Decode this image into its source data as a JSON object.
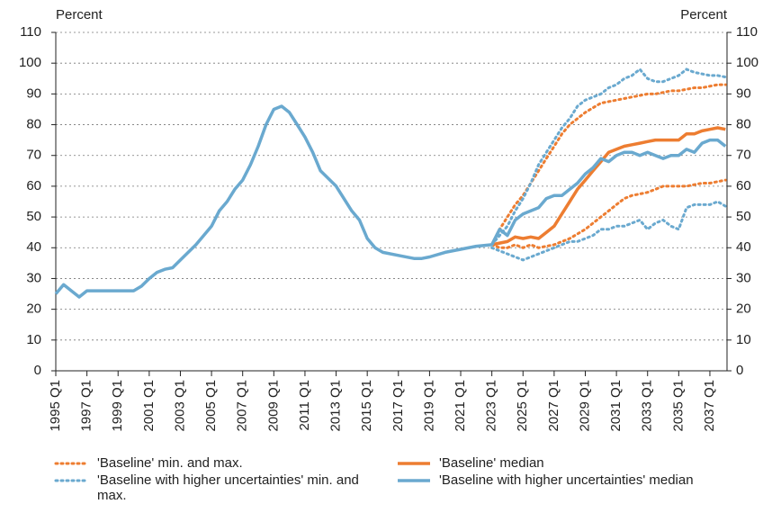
{
  "chart_data": {
    "type": "line",
    "y_axis_label": "Percent",
    "y2_axis_label": "Percent",
    "xlim": [
      1995,
      2038.1
    ],
    "xticks": [
      {
        "value": 1995,
        "label": "1995 Q1"
      },
      {
        "value": 1997,
        "label": "1997 Q1"
      },
      {
        "value": 1999,
        "label": "1999 Q1"
      },
      {
        "value": 2001,
        "label": "2001 Q1"
      },
      {
        "value": 2003,
        "label": "2003 Q1"
      },
      {
        "value": 2005,
        "label": "2005 Q1"
      },
      {
        "value": 2007,
        "label": "2007 Q1"
      },
      {
        "value": 2009,
        "label": "2009 Q1"
      },
      {
        "value": 2011,
        "label": "2011 Q1"
      },
      {
        "value": 2013,
        "label": "2013 Q1"
      },
      {
        "value": 2015,
        "label": "2015 Q1"
      },
      {
        "value": 2017,
        "label": "2017 Q1"
      },
      {
        "value": 2019,
        "label": "2019 Q1"
      },
      {
        "value": 2021,
        "label": "2021 Q1"
      },
      {
        "value": 2023,
        "label": "2023 Q1"
      },
      {
        "value": 2025,
        "label": "2025 Q1"
      },
      {
        "value": 2027,
        "label": "2027 Q1"
      },
      {
        "value": 2029,
        "label": "2029 Q1"
      },
      {
        "value": 2031,
        "label": "2031 Q1"
      },
      {
        "value": 2033,
        "label": "2033 Q1"
      },
      {
        "value": 2035,
        "label": "2035 Q1"
      },
      {
        "value": 2037,
        "label": "2037 Q1"
      }
    ],
    "ylim": [
      0,
      110
    ],
    "yticks": [
      0,
      10,
      20,
      30,
      40,
      50,
      60,
      70,
      80,
      90,
      100,
      110
    ],
    "y2lim": [
      0,
      110
    ],
    "y2ticks": [
      0,
      10,
      20,
      30,
      40,
      50,
      60,
      70,
      80,
      90,
      100,
      110
    ],
    "grid": true,
    "series": [
      {
        "name": "'Baseline' min. and max.",
        "color": "#ED7D31",
        "style": "dotted",
        "x": [
          2023,
          2023.5,
          2024,
          2024.5,
          2025,
          2025.5,
          2026,
          2026.5,
          2027,
          2027.5,
          2028,
          2028.5,
          2029,
          2029.5,
          2030,
          2030.5,
          2031,
          2031.5,
          2032,
          2032.5,
          2033,
          2033.5,
          2034,
          2034.5,
          2035,
          2035.5,
          2036,
          2036.5,
          2037,
          2037.5,
          2038
        ],
        "min": [
          41,
          40,
          40,
          41,
          40,
          41,
          40,
          40.5,
          41,
          42,
          43,
          44.5,
          46,
          48,
          50,
          52,
          54,
          56,
          57,
          57.5,
          58,
          59,
          60,
          60,
          60,
          60,
          60.5,
          61,
          61,
          61.5,
          62
        ],
        "max": [
          41,
          46,
          50,
          54,
          57,
          61,
          65,
          69,
          73,
          77,
          80,
          82,
          84,
          85.5,
          87,
          87.5,
          88,
          88.5,
          89,
          89.5,
          90,
          90,
          90.5,
          91,
          91,
          91.5,
          92,
          92,
          92.5,
          93,
          93
        ]
      },
      {
        "name": "'Baseline' median",
        "color": "#ED7D31",
        "style": "solid",
        "x": [
          2023,
          2023.5,
          2024,
          2024.5,
          2025,
          2025.5,
          2026,
          2026.5,
          2027,
          2027.5,
          2028,
          2028.5,
          2029,
          2029.5,
          2030,
          2030.5,
          2031,
          2031.5,
          2032,
          2032.5,
          2033,
          2033.5,
          2034,
          2034.5,
          2035,
          2035.5,
          2036,
          2036.5,
          2037,
          2037.5,
          2038
        ],
        "values": [
          41,
          41.5,
          42,
          43.5,
          43,
          43.5,
          43,
          45,
          47,
          51,
          55,
          59,
          62,
          65,
          68,
          71,
          72,
          73,
          73.5,
          74,
          74.5,
          75,
          75,
          75,
          75,
          77,
          77,
          78,
          78.5,
          79,
          78.5
        ]
      },
      {
        "name": "'Baseline with higher uncertainties' min. and max.",
        "color": "#6AA9CF",
        "style": "dotted",
        "x": [
          2023,
          2023.5,
          2024,
          2024.5,
          2025,
          2025.5,
          2026,
          2026.5,
          2027,
          2027.5,
          2028,
          2028.5,
          2029,
          2029.5,
          2030,
          2030.5,
          2031,
          2031.5,
          2032,
          2032.5,
          2033,
          2033.5,
          2034,
          2034.5,
          2035,
          2035.5,
          2036,
          2036.5,
          2037,
          2037.5,
          2038
        ],
        "min": [
          40,
          39,
          38,
          37,
          36,
          37,
          38,
          39,
          40,
          41,
          42,
          42,
          43,
          44,
          46,
          46,
          47,
          47,
          48,
          49,
          46,
          48,
          49,
          47,
          46,
          53,
          54,
          54,
          54,
          55,
          53.5
        ],
        "max": [
          41,
          44,
          47,
          52,
          56,
          61,
          67,
          71,
          75,
          79,
          82,
          86,
          88,
          89,
          90,
          92,
          93,
          95,
          96,
          98,
          95,
          94,
          94,
          95,
          96,
          98,
          97,
          96.5,
          96,
          96,
          95.5
        ]
      },
      {
        "name": "'Baseline with higher uncertainties' median",
        "color": "#6AA9CF",
        "style": "solid",
        "x": [
          1995,
          1995.5,
          1996,
          1996.5,
          1997,
          1998,
          1999,
          2000,
          2000.5,
          2001,
          2001.5,
          2002,
          2002.5,
          2003,
          2004,
          2005,
          2005.5,
          2006,
          2006.5,
          2007,
          2007.5,
          2008,
          2008.5,
          2009,
          2009.5,
          2010,
          2010.5,
          2011,
          2011.5,
          2012,
          2013,
          2013.5,
          2014,
          2014.5,
          2015,
          2015.5,
          2016,
          2017,
          2018,
          2018.5,
          2019,
          2020,
          2021,
          2022,
          2023,
          2023.5,
          2024,
          2024.5,
          2025,
          2025.5,
          2026,
          2026.5,
          2027,
          2027.5,
          2028,
          2028.5,
          2029,
          2029.5,
          2030,
          2030.5,
          2031,
          2031.5,
          2032,
          2032.5,
          2033,
          2033.5,
          2034,
          2034.5,
          2035,
          2035.5,
          2036,
          2036.5,
          2037,
          2037.5,
          2038
        ],
        "values": [
          25,
          28,
          26,
          24,
          26,
          26,
          26,
          26,
          27.5,
          30,
          32,
          33,
          33.5,
          36,
          41,
          47,
          52,
          55,
          59,
          62,
          67,
          73,
          80,
          85,
          86,
          84,
          80,
          76,
          71,
          65,
          60,
          56,
          52,
          49,
          43,
          40,
          38.5,
          37.5,
          36.5,
          36.5,
          37,
          38.5,
          39.5,
          40.5,
          41,
          46,
          44,
          49,
          51,
          52,
          53,
          56,
          57,
          57,
          59,
          61,
          64,
          66,
          69,
          68,
          70,
          71,
          71,
          70,
          71,
          70,
          69,
          70,
          70,
          72,
          71,
          74,
          75,
          75,
          73
        ]
      }
    ]
  }
}
